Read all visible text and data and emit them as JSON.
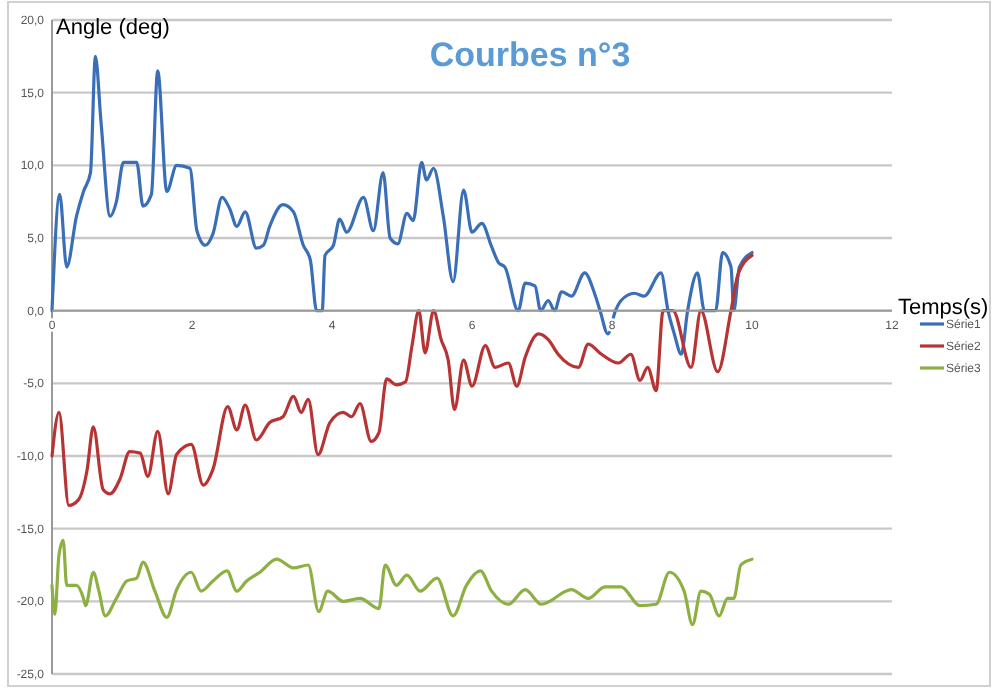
{
  "chart_data": {
    "type": "line",
    "title": "Courbes n°3",
    "xlabel": "Temps(s)",
    "ylabel": "Angle (deg)",
    "xlim": [
      0,
      12
    ],
    "xticks": [
      0,
      2,
      4,
      6,
      8,
      10,
      12
    ],
    "ylim": [
      -25,
      20
    ],
    "yticks": [
      {
        "value": -25,
        "label": "-25,0"
      },
      {
        "value": -20,
        "label": "-20,0"
      },
      {
        "value": -15,
        "label": "-15,0"
      },
      {
        "value": -10,
        "label": "-10,0"
      },
      {
        "value": -5,
        "label": "-5,0"
      },
      {
        "value": 0,
        "label": "0,0"
      },
      {
        "value": 5,
        "label": "5,0"
      },
      {
        "value": 10,
        "label": "10,0"
      },
      {
        "value": 15,
        "label": "15,0"
      },
      {
        "value": 20,
        "label": "20,0"
      }
    ],
    "grid": "y",
    "legend": "right",
    "marker": "none",
    "line_style": "solid",
    "series": [
      {
        "name": "Série1",
        "color": "#3a6fb7",
        "x": [
          0,
          0.11,
          0.21,
          0.35,
          0.45,
          0.55,
          0.62,
          0.7,
          0.83,
          0.92,
          1.02,
          1.21,
          1.3,
          1.42,
          1.51,
          1.64,
          1.78,
          1.97,
          2.07,
          2.19,
          2.3,
          2.43,
          2.54,
          2.64,
          2.76,
          2.92,
          3.02,
          3.11,
          3.3,
          3.45,
          3.59,
          3.69,
          3.78,
          3.86,
          3.9,
          4.02,
          4.11,
          4.21,
          4.45,
          4.59,
          4.73,
          4.83,
          4.94,
          5.07,
          5.16,
          5.28,
          5.35,
          5.45,
          5.59,
          5.73,
          5.88,
          6,
          6.14,
          6.28,
          6.38,
          6.47,
          6.66,
          6.76,
          6.9,
          6.98,
          7.09,
          7.18,
          7.28,
          7.42,
          7.61,
          7.75,
          7.83,
          7.94,
          8.05,
          8.13,
          8.32,
          8.46,
          8.7,
          8.8,
          8.89,
          8.99,
          9.08,
          9.22,
          9.32,
          9.48,
          9.58,
          9.7,
          9.74,
          9.82,
          10
        ],
        "values": [
          0,
          8,
          3,
          6.5,
          8.2,
          9.5,
          17.5,
          13,
          6.5,
          7.5,
          10.2,
          10.2,
          7.2,
          8,
          16.5,
          8.2,
          10,
          9.8,
          5.5,
          4.5,
          5.3,
          7.8,
          7,
          5.8,
          6.8,
          4.3,
          4.5,
          5.8,
          7.3,
          6.8,
          4.5,
          3.5,
          0,
          0,
          3.8,
          4.5,
          6.3,
          5.4,
          7.8,
          5.5,
          9.5,
          5,
          4.6,
          6.7,
          6.2,
          10.2,
          9,
          9.8,
          6.5,
          2,
          8.3,
          5.4,
          6,
          4.4,
          3.3,
          3,
          0,
          1.9,
          1.7,
          0,
          0.7,
          0,
          1.3,
          1,
          2.6,
          1.2,
          0,
          -1.6,
          0,
          0.7,
          1.2,
          1,
          2.6,
          0,
          -1.6,
          -3,
          0,
          2.6,
          0,
          0,
          4,
          3,
          0,
          3,
          4
        ]
      },
      {
        "name": "Série2",
        "color": "#b83434",
        "x": [
          0,
          0.1,
          0.24,
          0.38,
          0.5,
          0.59,
          0.73,
          0.83,
          0.97,
          1.11,
          1.26,
          1.37,
          1.51,
          1.66,
          1.78,
          1.99,
          2.16,
          2.3,
          2.51,
          2.64,
          2.76,
          2.92,
          3.11,
          3.3,
          3.45,
          3.56,
          3.66,
          3.8,
          3.97,
          4.16,
          4.28,
          4.4,
          4.56,
          4.67,
          4.78,
          4.92,
          5.05,
          5.14,
          5.24,
          5.33,
          5.45,
          5.56,
          5.66,
          5.75,
          5.88,
          6,
          6.19,
          6.33,
          6.52,
          6.64,
          6.76,
          6.95,
          7.09,
          7.23,
          7.52,
          7.66,
          7.85,
          8.09,
          8.27,
          8.4,
          8.51,
          8.63,
          8.73,
          8.87,
          9.13,
          9.27,
          9.51,
          9.7,
          9.8,
          10
        ],
        "values": [
          -10,
          -7,
          -13.4,
          -13,
          -11,
          -8,
          -12.3,
          -12.6,
          -11.6,
          -9.7,
          -9.8,
          -11.4,
          -8.3,
          -12.6,
          -9.9,
          -9.2,
          -12,
          -10.9,
          -6.6,
          -8.2,
          -6.5,
          -8.9,
          -7.7,
          -7.3,
          -5.9,
          -7,
          -6.1,
          -9.9,
          -7.7,
          -7,
          -7.3,
          -6.4,
          -9,
          -8.4,
          -4.7,
          -5.1,
          -4.9,
          -2.5,
          0,
          -2.9,
          0,
          -2,
          -3.4,
          -6.8,
          -3.4,
          -5.2,
          -2.4,
          -3.9,
          -3.6,
          -5.2,
          -3.2,
          -1.6,
          -2,
          -3,
          -3.9,
          -2.3,
          -3,
          -3.6,
          -3,
          -4.8,
          -3.9,
          -5.5,
          0,
          0,
          -3.9,
          0,
          -4.2,
          0,
          2.5,
          3.8
        ]
      },
      {
        "name": "Série3",
        "color": "#8db043",
        "x": [
          0,
          0.04,
          0.1,
          0.16,
          0.21,
          0.35,
          0.45,
          0.48,
          0.59,
          0.67,
          0.76,
          0.92,
          1.07,
          1.21,
          1.3,
          1.47,
          1.64,
          1.78,
          1.99,
          2.13,
          2.3,
          2.5,
          2.64,
          2.78,
          2.97,
          3.21,
          3.45,
          3.66,
          3.81,
          3.94,
          4.16,
          4.4,
          4.67,
          4.76,
          4.92,
          5.07,
          5.26,
          5.5,
          5.73,
          5.92,
          6.12,
          6.28,
          6.52,
          6.76,
          6.99,
          7.42,
          7.66,
          7.9,
          8.13,
          8.4,
          8.63,
          8.82,
          9.03,
          9.15,
          9.27,
          9.39,
          9.53,
          9.65,
          9.74,
          9.84,
          10
        ],
        "values": [
          -18.9,
          -20.9,
          -16.8,
          -15.8,
          -18.9,
          -18.9,
          -19.8,
          -20.3,
          -18,
          -19.3,
          -21,
          -19.8,
          -18.6,
          -18.4,
          -17.3,
          -19.3,
          -21.1,
          -19.2,
          -18,
          -19.3,
          -18.6,
          -17.9,
          -19.3,
          -18.6,
          -18,
          -17.1,
          -17.7,
          -17.5,
          -20.7,
          -19.3,
          -20,
          -19.8,
          -20.5,
          -17.5,
          -18.9,
          -18.2,
          -19.3,
          -18.4,
          -21,
          -18.9,
          -17.9,
          -19.3,
          -20.2,
          -19.2,
          -20.2,
          -19.2,
          -19.8,
          -19,
          -19,
          -20.3,
          -20.2,
          -18,
          -19.3,
          -21.6,
          -19.3,
          -19.5,
          -21,
          -19.8,
          -19.8,
          -17.5,
          -17.1
        ]
      }
    ]
  }
}
